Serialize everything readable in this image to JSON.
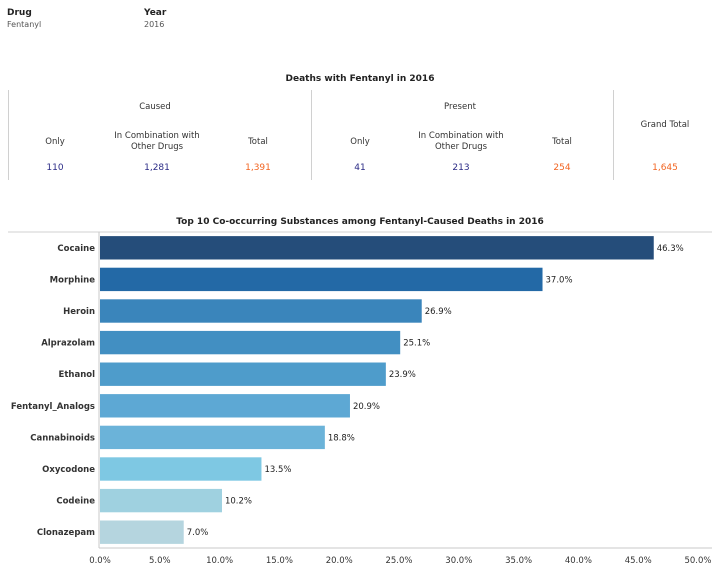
{
  "filters": {
    "drug_label": "Drug",
    "drug_value": "Fentanyl",
    "year_label": "Year",
    "year_value": "2016"
  },
  "summary": {
    "title": "Deaths with Fentanyl in 2016",
    "caused": {
      "header": "Caused",
      "only_label": "Only",
      "combo_label": "In Combination with Other Drugs",
      "total_label": "Total",
      "only": "110",
      "combo": "1,281",
      "total": "1,391"
    },
    "present": {
      "header": "Present",
      "only_label": "Only",
      "combo_label": "In Combination with Other Drugs",
      "total_label": "Total",
      "only": "41",
      "combo": "213",
      "total": "254"
    },
    "grand_total_label": "Grand Total",
    "grand_total": "1,645"
  },
  "colors": {
    "count_blue": "#2b2b86",
    "count_orange": "#f26522",
    "bars": [
      "#254d7a",
      "#2369a6",
      "#3a85bb",
      "#428fc2",
      "#4e9ccb",
      "#5da8d4",
      "#6bb3d9",
      "#7ec8e3",
      "#9fd1e0",
      "#b5d5df"
    ]
  },
  "chart_data": {
    "type": "bar",
    "orientation": "horizontal",
    "title": "Top 10 Co-occurring Substances among Fentanyl-Caused Deaths in 2016",
    "categories": [
      "Cocaine",
      "Morphine",
      "Heroin",
      "Alprazolam",
      "Ethanol",
      "Fentanyl_Analogs",
      "Cannabinoids",
      "Oxycodone",
      "Codeine",
      "Clonazepam"
    ],
    "values": [
      46.3,
      37.0,
      26.9,
      25.1,
      23.9,
      20.9,
      18.8,
      13.5,
      10.2,
      7.0
    ],
    "data_labels": [
      "46.3%",
      "37.0%",
      "26.9%",
      "25.1%",
      "23.9%",
      "20.9%",
      "18.8%",
      "13.5%",
      "10.2%",
      "7.0%"
    ],
    "xticks": [
      0,
      5,
      10,
      15,
      20,
      25,
      30,
      35,
      40,
      45,
      50
    ],
    "xtick_labels": [
      "0.0%",
      "5.0%",
      "10.0%",
      "15.0%",
      "20.0%",
      "25.0%",
      "30.0%",
      "35.0%",
      "40.0%",
      "45.0%",
      "50.0%"
    ],
    "xlim": [
      0,
      50
    ],
    "grid": false
  }
}
